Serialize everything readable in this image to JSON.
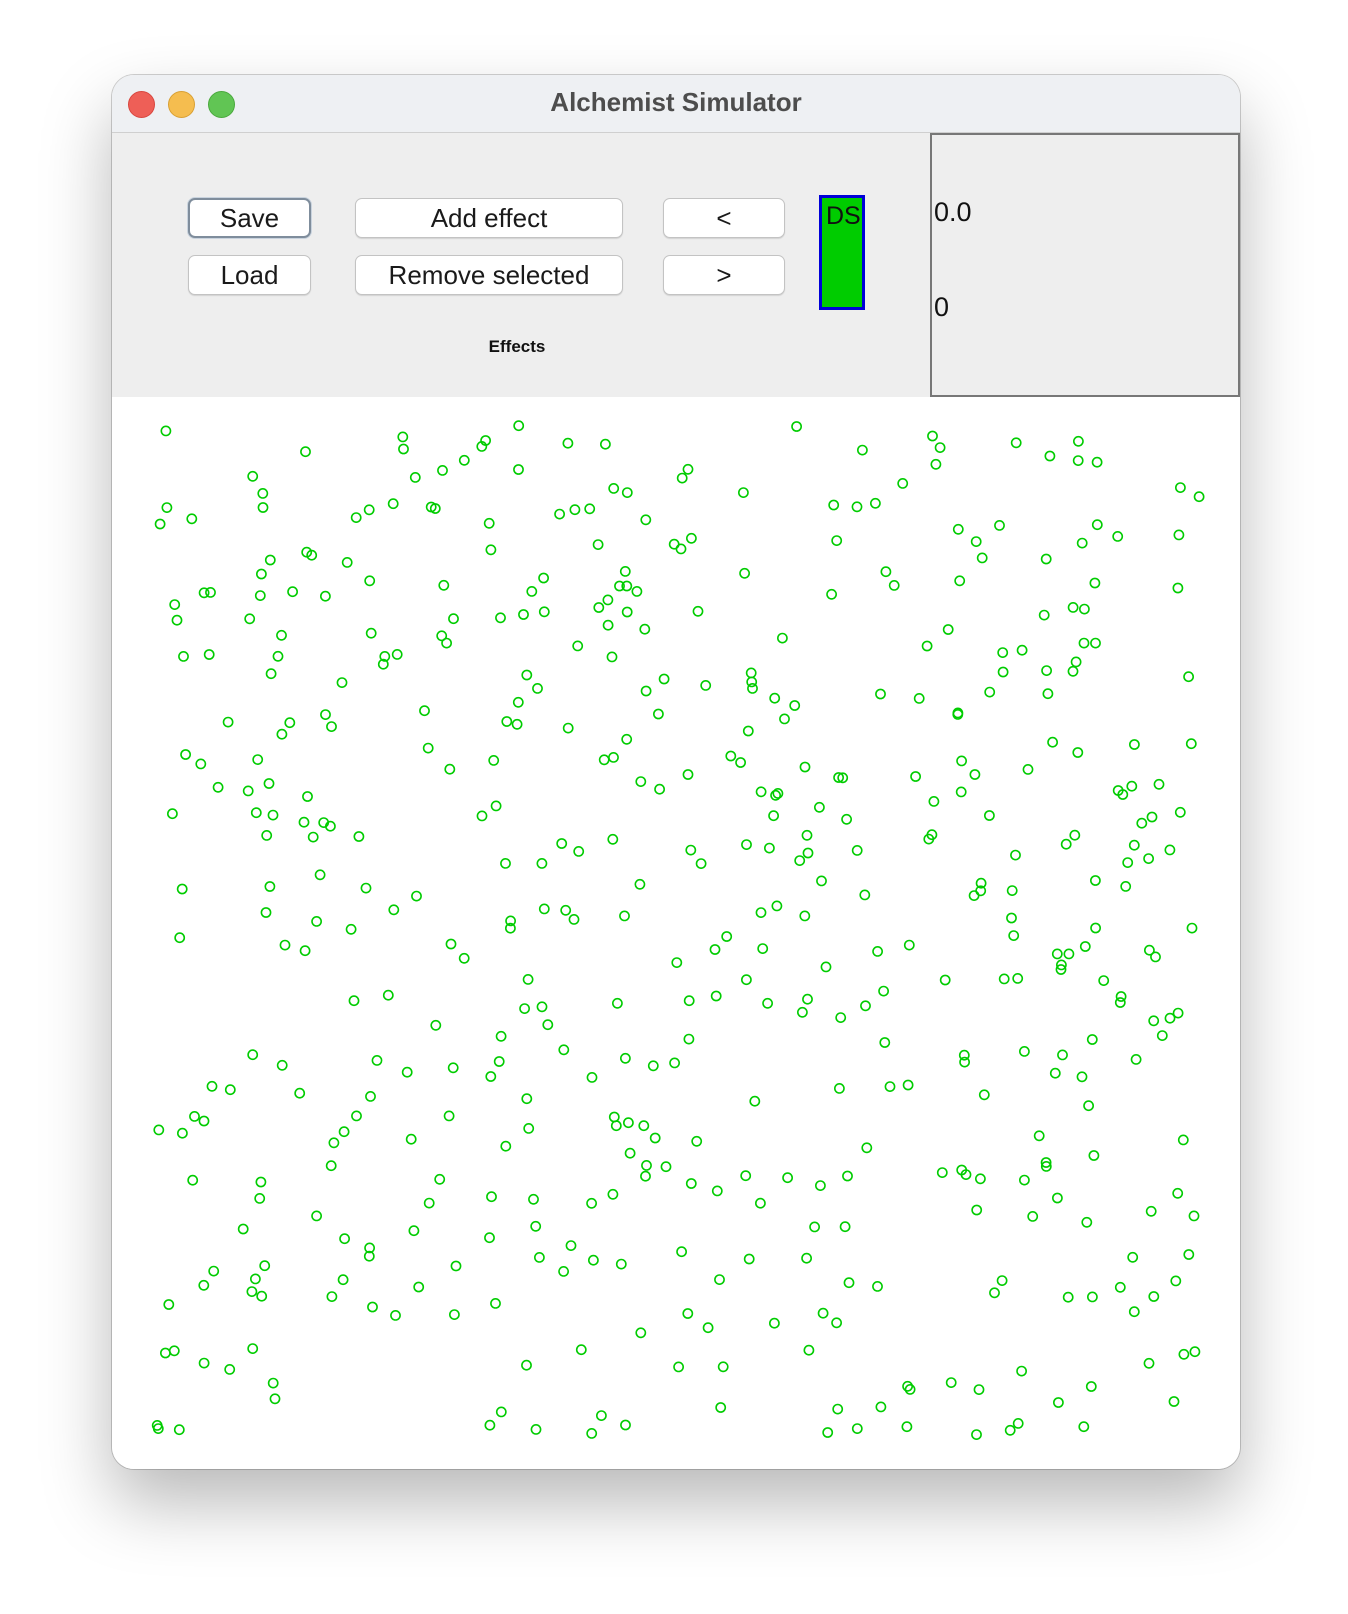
{
  "window": {
    "title": "Alchemist Simulator"
  },
  "toolbar": {
    "save_label": "Save",
    "load_label": "Load",
    "add_effect_label": "Add effect",
    "remove_selected_label": "Remove selected",
    "prev_label": "<",
    "next_label": ">",
    "effects_label": "Effects",
    "ds_label": "DS",
    "ds_fill_color": "#00cc00",
    "ds_border_color": "#0000d8"
  },
  "info": {
    "value_top": "0.0",
    "value_bottom": "0"
  },
  "canvas": {
    "particle_color": "#00cc00",
    "particle_count": 500
  }
}
